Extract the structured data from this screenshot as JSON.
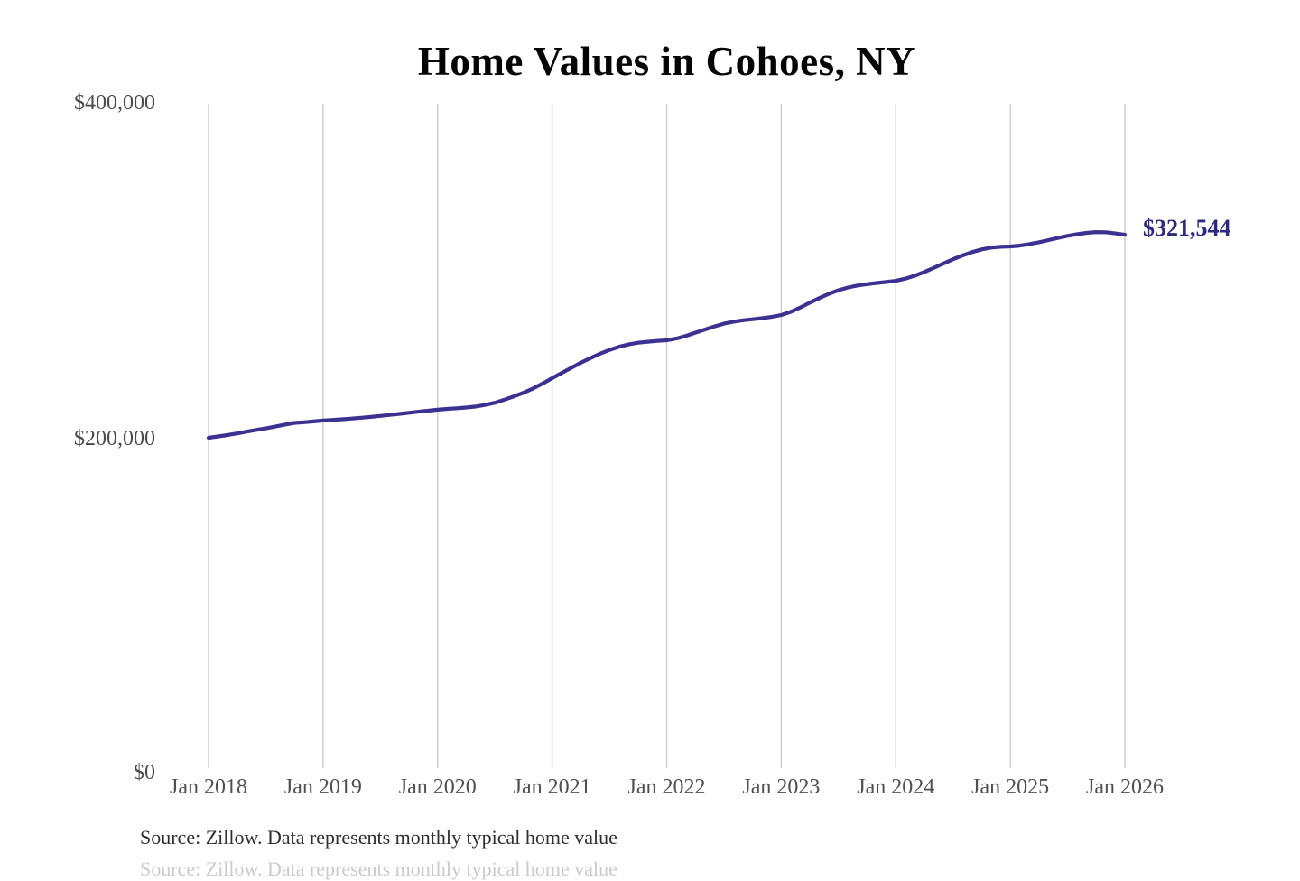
{
  "chart": {
    "title": "Home Values in Cohoes, NY",
    "end_label": "$321,544",
    "source_note": "Source: Zillow. Data represents monthly typical home value",
    "clipped_text": "Source: Zillow. Data represents monthly typical home value",
    "colors": {
      "line": "#3a3191",
      "end_label": "#2e2a7f",
      "grid": "#cbcbcb",
      "axis_text": "#4f4f4f",
      "title": "#050505",
      "background": "#ffffff"
    }
  },
  "chart_data": {
    "type": "line",
    "title": "Home Values in Cohoes, NY",
    "xlabel": "",
    "ylabel": "",
    "ylim": [
      0,
      400000
    ],
    "y_tick_labels": [
      "$0",
      "$200,000",
      "$400,000"
    ],
    "x_tick_labels": [
      "Jan 2018",
      "Jan 2019",
      "Jan 2020",
      "Jan 2021",
      "Jan 2022",
      "Jan 2023",
      "Jan 2024",
      "Jan 2025",
      "Jan 2026"
    ],
    "grid": "vertical-only",
    "legend": "none",
    "annotation": "$321,544",
    "final_value": 321544,
    "frequency": "monthly",
    "x_start": "2018-01",
    "x_end": "2026-01",
    "series": [
      {
        "name": "Typical home value (USD)",
        "values": [
          200000,
          200800,
          201600,
          202600,
          203700,
          204700,
          205600,
          206700,
          207900,
          208900,
          209300,
          209800,
          210300,
          210700,
          211100,
          211500,
          212000,
          212500,
          213100,
          213700,
          214300,
          215000,
          215600,
          216200,
          216800,
          217300,
          217700,
          218100,
          218700,
          219700,
          221000,
          222800,
          224800,
          227000,
          229500,
          232500,
          235700,
          238800,
          241900,
          244900,
          247700,
          250300,
          252600,
          254500,
          255900,
          256900,
          257500,
          258000,
          258400,
          259400,
          261000,
          262900,
          264800,
          266700,
          268300,
          269500,
          270400,
          271000,
          271600,
          272400,
          273500,
          275400,
          278000,
          280900,
          283700,
          286200,
          288400,
          290000,
          291200,
          292000,
          292700,
          293300,
          294000,
          295300,
          297100,
          299300,
          301800,
          304400,
          306900,
          309200,
          311200,
          312800,
          313900,
          314400,
          314600,
          315100,
          316000,
          317100,
          318400,
          319700,
          320900,
          321900,
          322700,
          323200,
          323100,
          322400,
          321544
        ]
      }
    ]
  }
}
